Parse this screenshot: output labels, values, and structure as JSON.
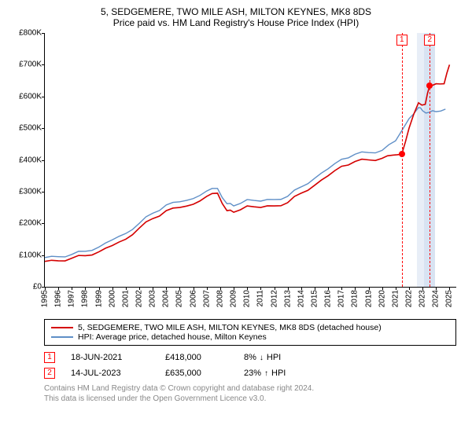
{
  "title": "5, SEDGEMERE, TWO MILE ASH, MILTON KEYNES, MK8 8DS",
  "subtitle": "Price paid vs. HM Land Registry's House Price Index (HPI)",
  "chart": {
    "type": "line",
    "background_color": "#ffffff",
    "x": {
      "min": 1995,
      "max": 2025.5,
      "ticks": [
        1995,
        1996,
        1997,
        1998,
        1999,
        2000,
        2001,
        2002,
        2003,
        2004,
        2005,
        2006,
        2007,
        2008,
        2009,
        2010,
        2011,
        2012,
        2013,
        2014,
        2015,
        2016,
        2017,
        2018,
        2019,
        2020,
        2021,
        2022,
        2023,
        2024,
        2025
      ]
    },
    "y": {
      "min": 0,
      "max": 800000,
      "ticks": [
        0,
        100000,
        200000,
        300000,
        400000,
        500000,
        600000,
        700000,
        800000
      ],
      "tick_labels": [
        "£0",
        "£100K",
        "£200K",
        "£300K",
        "£400K",
        "£500K",
        "£600K",
        "£700K",
        "£800K"
      ]
    },
    "series": [
      {
        "name": "property",
        "label": "5, SEDGEMERE, TWO MILE ASH, MILTON KEYNES, MK8 8DS (detached house)",
        "color": "#d40000",
        "line_width": 1.6,
        "points": [
          [
            1995,
            80000
          ],
          [
            1996,
            82000
          ],
          [
            1997,
            90000
          ],
          [
            1998,
            98000
          ],
          [
            1999,
            110000
          ],
          [
            2000,
            130000
          ],
          [
            2001,
            150000
          ],
          [
            2002,
            185000
          ],
          [
            2003,
            215000
          ],
          [
            2004,
            240000
          ],
          [
            2005,
            250000
          ],
          [
            2006,
            260000
          ],
          [
            2007,
            285000
          ],
          [
            2007.8,
            295000
          ],
          [
            2008.5,
            240000
          ],
          [
            2009,
            235000
          ],
          [
            2010,
            255000
          ],
          [
            2011,
            250000
          ],
          [
            2012,
            255000
          ],
          [
            2013,
            265000
          ],
          [
            2014,
            295000
          ],
          [
            2015,
            320000
          ],
          [
            2016,
            350000
          ],
          [
            2017,
            380000
          ],
          [
            2018,
            395000
          ],
          [
            2019,
            400000
          ],
          [
            2020,
            405000
          ],
          [
            2020.8,
            415000
          ],
          [
            2021.46,
            418000
          ],
          [
            2022,
            500000
          ],
          [
            2022.7,
            580000
          ],
          [
            2023.2,
            575000
          ],
          [
            2023.53,
            635000
          ],
          [
            2024,
            640000
          ],
          [
            2024.6,
            640000
          ],
          [
            2025,
            700000
          ]
        ]
      },
      {
        "name": "hpi",
        "label": "HPI: Average price, detached house, Milton Keynes",
        "color": "#5f8fc7",
        "line_width": 1.4,
        "points": [
          [
            1995,
            92000
          ],
          [
            1996,
            95000
          ],
          [
            1997,
            102000
          ],
          [
            1998,
            112000
          ],
          [
            1999,
            125000
          ],
          [
            2000,
            148000
          ],
          [
            2001,
            168000
          ],
          [
            2002,
            200000
          ],
          [
            2003,
            232000
          ],
          [
            2004,
            258000
          ],
          [
            2005,
            268000
          ],
          [
            2006,
            278000
          ],
          [
            2007,
            302000
          ],
          [
            2007.8,
            310000
          ],
          [
            2008.5,
            262000
          ],
          [
            2009,
            255000
          ],
          [
            2010,
            275000
          ],
          [
            2011,
            270000
          ],
          [
            2012,
            275000
          ],
          [
            2013,
            285000
          ],
          [
            2014,
            315000
          ],
          [
            2015,
            342000
          ],
          [
            2016,
            372000
          ],
          [
            2017,
            402000
          ],
          [
            2018,
            418000
          ],
          [
            2019,
            423000
          ],
          [
            2020,
            430000
          ],
          [
            2021,
            460000
          ],
          [
            2022,
            530000
          ],
          [
            2022.7,
            565000
          ],
          [
            2023,
            555000
          ],
          [
            2023.5,
            550000
          ],
          [
            2024,
            552000
          ],
          [
            2024.7,
            560000
          ]
        ]
      }
    ],
    "marker_bands": [
      {
        "from": 2022.6,
        "to": 2023.1,
        "color": "#e8eef7"
      },
      {
        "from": 2023.1,
        "to": 2023.9,
        "color": "#d8e3f2"
      }
    ],
    "markers": [
      {
        "idx": "1",
        "x": 2021.46,
        "y": 418000
      },
      {
        "idx": "2",
        "x": 2023.53,
        "y": 635000
      }
    ]
  },
  "legend": {
    "items": [
      {
        "color": "#d40000",
        "label_path": "chart.series.0.label"
      },
      {
        "color": "#5f8fc7",
        "label_path": "chart.series.1.label"
      }
    ]
  },
  "transactions": [
    {
      "idx": "1",
      "date": "18-JUN-2021",
      "price": "£418,000",
      "delta_pct": "8%",
      "delta_dir": "down",
      "delta_ref": "HPI"
    },
    {
      "idx": "2",
      "date": "14-JUL-2023",
      "price": "£635,000",
      "delta_pct": "23%",
      "delta_dir": "up",
      "delta_ref": "HPI"
    }
  ],
  "attribution": {
    "line1": "Contains HM Land Registry data © Crown copyright and database right 2024.",
    "line2": "This data is licensed under the Open Government Licence v3.0."
  },
  "colors": {
    "marker_accent": "#ff0000",
    "text": "#000000",
    "muted": "#888888",
    "delta_up": "#008000",
    "delta_down": "#b00000"
  },
  "fonts": {
    "title_size": 12,
    "tick_size": 10,
    "legend_size": 10.5
  }
}
